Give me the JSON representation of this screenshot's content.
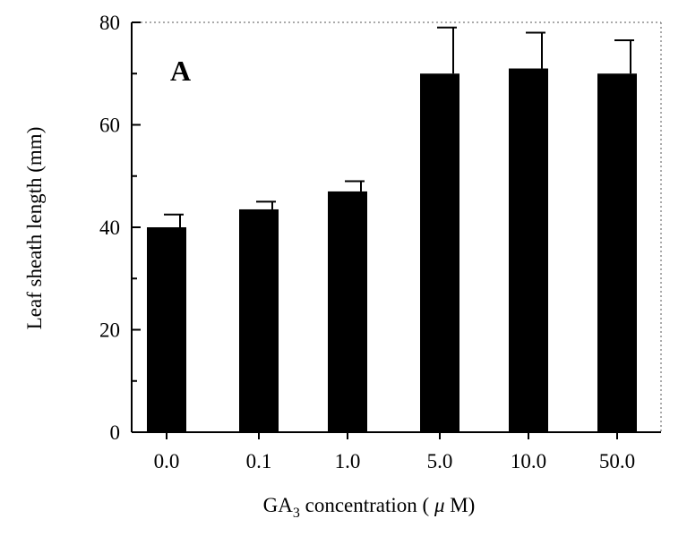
{
  "chart_data": {
    "type": "bar",
    "panel_label": "A",
    "categories": [
      "0.0",
      "0.1",
      "1.0",
      "5.0",
      "10.0",
      "50.0"
    ],
    "values": [
      40,
      43.5,
      47,
      70,
      71,
      70
    ],
    "errors": [
      2.5,
      1.5,
      2,
      9,
      7,
      6.5
    ],
    "ylabel": "Leaf sheath length (mm)",
    "xlabel_parts": [
      "GA",
      "3",
      " concentration ( ",
      "μ",
      " M)"
    ],
    "ylim": [
      0,
      80
    ],
    "yticks": [
      "0",
      "20",
      "40",
      "60",
      "80"
    ],
    "bar_color": "#000000",
    "grid": false,
    "legend": "none"
  }
}
